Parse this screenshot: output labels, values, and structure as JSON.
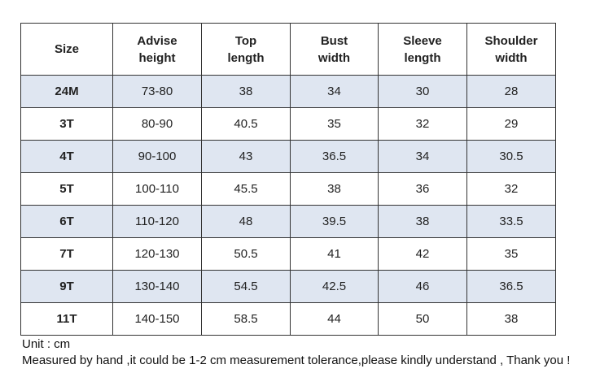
{
  "table": {
    "header": [
      "Size",
      "Advise\nheight",
      "Top\nlength",
      "Bust\nwidth",
      "Sleeve\nlength",
      "Shoulder\nwidth"
    ],
    "rows": [
      [
        "24M",
        "73-80",
        "38",
        "34",
        "30",
        "28"
      ],
      [
        "3T",
        "80-90",
        "40.5",
        "35",
        "32",
        "29"
      ],
      [
        "4T",
        "90-100",
        "43",
        "36.5",
        "34",
        "30.5"
      ],
      [
        "5T",
        "100-110",
        "45.5",
        "38",
        "36",
        "32"
      ],
      [
        "6T",
        "110-120",
        "48",
        "39.5",
        "38",
        "33.5"
      ],
      [
        "7T",
        "120-130",
        "50.5",
        "41",
        "42",
        "35"
      ],
      [
        "9T",
        "130-140",
        "54.5",
        "42.5",
        "46",
        "36.5"
      ],
      [
        "11T",
        "140-150",
        "58.5",
        "44",
        "50",
        "38"
      ]
    ]
  },
  "notes": [
    "Unit : cm",
    "Measured by hand ,it could be 1-2 cm measurement tolerance,please kindly understand , Thank you !"
  ]
}
